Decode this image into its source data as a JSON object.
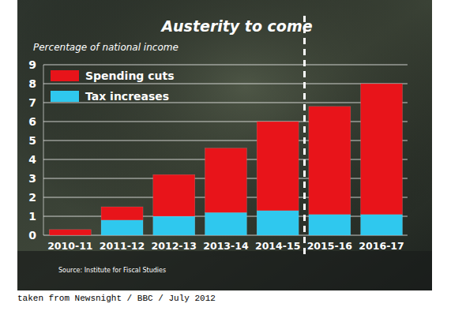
{
  "chart_data": {
    "type": "bar",
    "stacked": true,
    "title": "Austerity to come",
    "y_label": "Percentage of national income",
    "categories": [
      "2010-11",
      "2011-12",
      "2012-13",
      "2013-14",
      "2014-15",
      "2015-16",
      "2016-17"
    ],
    "series": [
      {
        "name": "Spending cuts",
        "color": "#e8141a",
        "values": [
          0.3,
          0.7,
          2.2,
          3.4,
          4.7,
          5.7,
          6.9
        ]
      },
      {
        "name": "Tax increases",
        "color": "#2fc8ee",
        "values": [
          0.0,
          0.8,
          1.0,
          1.2,
          1.3,
          1.1,
          1.1
        ]
      }
    ],
    "ylim": [
      0,
      9
    ],
    "yticks": [
      0,
      1,
      2,
      3,
      4,
      5,
      6,
      7,
      8,
      9
    ],
    "grid": true,
    "legend": "upper left",
    "annotations": [
      "Source: Institute for Fiscal Studies",
      "taken from Newsnight / BBC / July 2012"
    ]
  }
}
